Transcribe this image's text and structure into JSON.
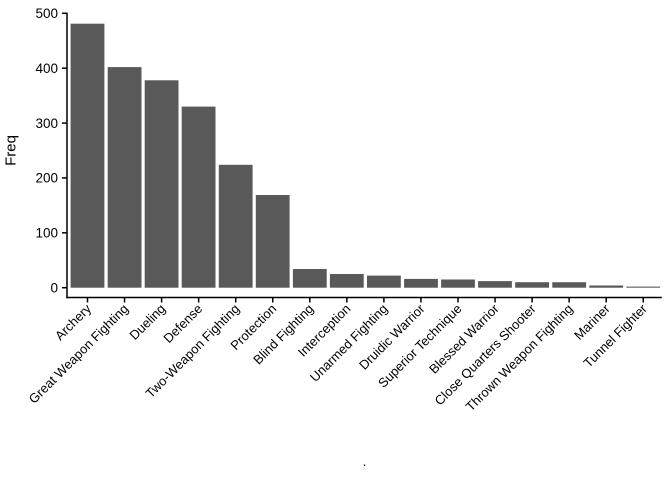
{
  "figure": {
    "background": "#ffffff"
  },
  "chart_data": {
    "type": "bar",
    "title": "",
    "xlabel": ".",
    "ylabel": "Freq",
    "categories": [
      "Archery",
      "Great Weapon Fighting",
      "Dueling",
      "Defense",
      "Two-Weapon Fighting",
      "Protection",
      "Blind Fighting",
      "Interception",
      "Unarmed Fighting",
      "Druidic Warrior",
      "Superior Technique",
      "Blessed Warrior",
      "Close Quarters Shooter",
      "Thrown Weapon Fighting",
      "Mariner",
      "Tunnel Fighter"
    ],
    "values": [
      481,
      402,
      378,
      330,
      224,
      169,
      34,
      25,
      22,
      16,
      15,
      12,
      10,
      10,
      4,
      2
    ],
    "yticks": [
      0,
      100,
      200,
      300,
      400,
      500
    ],
    "ylim": [
      0,
      500
    ],
    "x_label_angle_deg": -45,
    "grid": false,
    "legend": "none",
    "bar_color": "#595959",
    "axis_color": "#000000",
    "text_color": "#000000"
  }
}
